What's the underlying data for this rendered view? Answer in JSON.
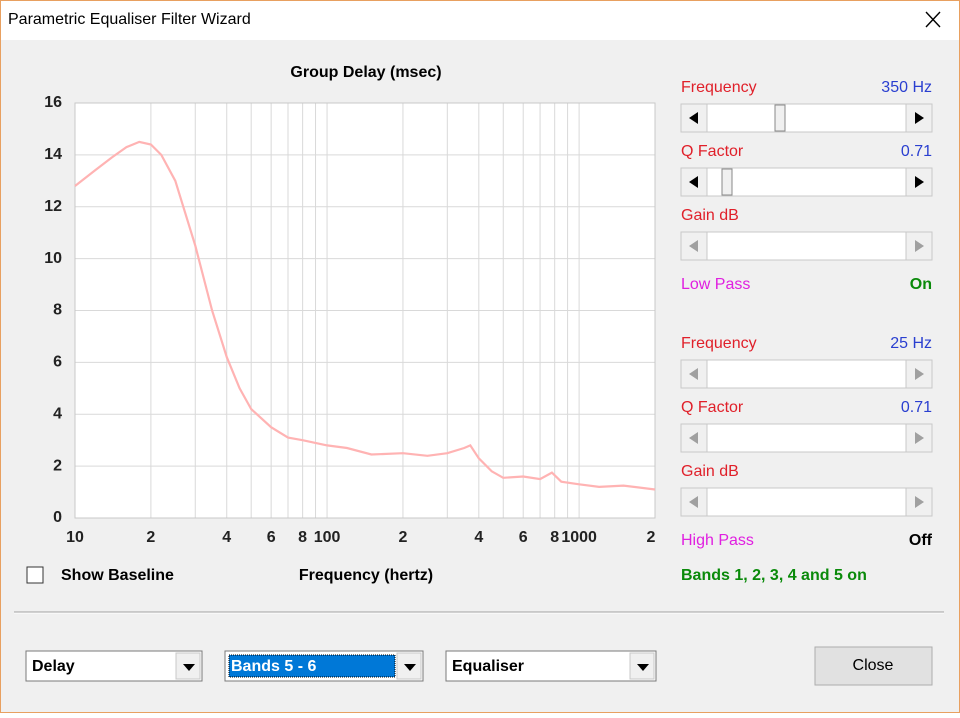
{
  "window": {
    "title": "Parametric Equaliser Filter Wizard"
  },
  "chart_data": {
    "type": "line",
    "title": "Group Delay (msec)",
    "x_label": "Frequency (hertz)",
    "log_x": true,
    "grid": true,
    "color": "#ffb3b3",
    "xlim": [
      10,
      2000
    ],
    "ylim": [
      0,
      16
    ],
    "xticks": [
      10,
      {
        "value": 20,
        "label": "2"
      },
      {
        "value": 40,
        "label": "4"
      },
      {
        "value": 60,
        "label": "6"
      },
      {
        "value": 80,
        "label": "8"
      },
      100,
      {
        "value": 200,
        "label": "2"
      },
      {
        "value": 400,
        "label": "4"
      },
      {
        "value": 600,
        "label": "6"
      },
      {
        "value": 800,
        "label": "8"
      },
      1000,
      {
        "value": 2000,
        "label": "2"
      }
    ],
    "xminor": [
      30,
      50,
      70,
      90,
      300,
      500,
      700,
      900
    ],
    "yticks": [
      0,
      2,
      4,
      6,
      8,
      10,
      12,
      14,
      16
    ],
    "x": [
      10,
      12,
      14,
      16,
      18,
      20,
      22,
      25,
      30,
      35,
      40,
      45,
      50,
      60,
      70,
      80,
      100,
      120,
      150,
      200,
      250,
      300,
      350,
      370,
      400,
      450,
      500,
      600,
      700,
      780,
      850,
      1000,
      1200,
      1500,
      2000
    ],
    "values": [
      12.8,
      13.4,
      13.9,
      14.3,
      14.5,
      14.4,
      14.0,
      13.0,
      10.5,
      8.0,
      6.2,
      5.0,
      4.2,
      3.5,
      3.1,
      3.0,
      2.8,
      2.7,
      2.45,
      2.5,
      2.4,
      2.5,
      2.7,
      2.8,
      2.3,
      1.8,
      1.55,
      1.6,
      1.5,
      1.75,
      1.4,
      1.3,
      1.2,
      1.25,
      1.1
    ]
  },
  "options": {
    "show_baseline": "Show Baseline"
  },
  "filters": [
    {
      "frequency_label": "Frequency",
      "frequency": "350 Hz",
      "q_label": "Q Factor",
      "q": "0.71",
      "gain_label": "Gain  dB",
      "pass_label": "Low Pass",
      "pass_state": "On"
    },
    {
      "frequency_label": "Frequency",
      "frequency": "25 Hz",
      "q_label": "Q Factor",
      "q": "0.71",
      "gain_label": "Gain  dB",
      "pass_label": "High Pass",
      "pass_state": "Off"
    }
  ],
  "status": "Bands 1, 2, 3, 4 and 5 on",
  "dropdowns": [
    "Delay",
    "Bands 5 - 6",
    "Equaliser"
  ],
  "buttons": {
    "close": "Close"
  }
}
